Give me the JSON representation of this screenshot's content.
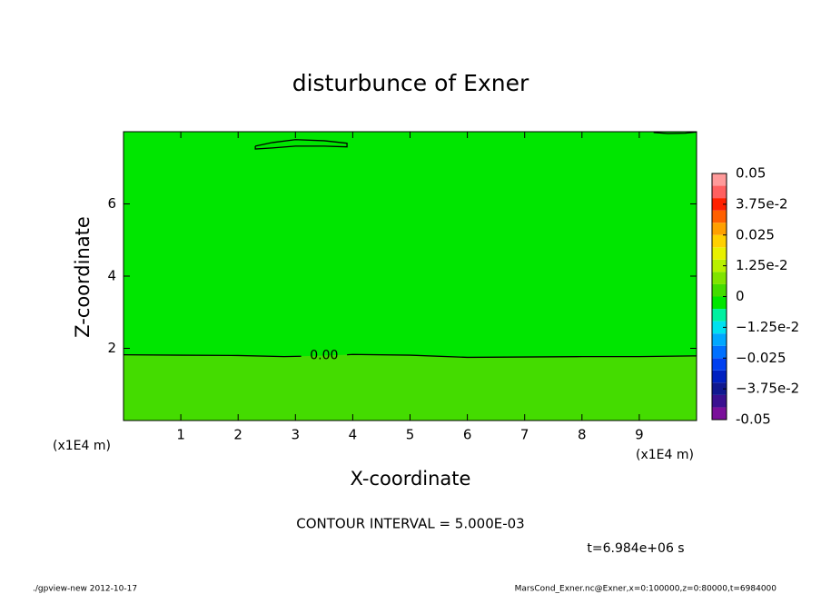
{
  "chart_data": {
    "type": "contour",
    "title": "disturbunce of Exner",
    "xlabel": "X-coordinate",
    "ylabel": "Z-coordinate",
    "xunit": "(x1E4 m)",
    "yunit": "(x1E4 m)",
    "xlim": [
      0,
      10
    ],
    "ylim": [
      0,
      8
    ],
    "xticks": [
      1,
      2,
      3,
      4,
      5,
      6,
      7,
      8,
      9
    ],
    "yticks": [
      2,
      4,
      6
    ],
    "contours": [
      {
        "level": 0,
        "label": "0.00",
        "line_color": "#000000",
        "x": [
          0,
          1,
          2,
          2.8,
          3.1,
          null,
          3.9,
          4,
          5,
          6,
          7,
          8,
          9,
          10
        ],
        "y": [
          1.82,
          1.81,
          1.8,
          1.77,
          1.78,
          null,
          1.82,
          1.83,
          1.81,
          1.75,
          1.76,
          1.77,
          1.77,
          1.79
        ]
      },
      {
        "level": 0,
        "line_color": "#000000",
        "x": [
          2.3,
          2.6,
          3.0,
          3.5,
          3.9,
          3.9,
          3.5,
          3.0,
          2.6,
          2.3,
          2.3
        ],
        "y": [
          7.6,
          7.7,
          7.78,
          7.75,
          7.68,
          7.58,
          7.6,
          7.6,
          7.55,
          7.52,
          7.6
        ]
      },
      {
        "level": 0,
        "line_color": "#000000",
        "x": [
          9.25,
          9.5,
          9.8,
          10
        ],
        "y": [
          7.98,
          7.95,
          7.96,
          7.99
        ]
      }
    ],
    "colorbar": {
      "levels": [
        -0.05,
        -0.045,
        -0.04,
        -0.035,
        -0.03,
        -0.025,
        -0.02,
        -0.015,
        -0.01,
        -0.005,
        0,
        0.005,
        0.01,
        0.015,
        0.02,
        0.025,
        0.03,
        0.035,
        0.04,
        0.045,
        0.05
      ],
      "colors": [
        "#7a0f9a",
        "#3a1090",
        "#101890",
        "#0020c0",
        "#0040f0",
        "#0070ff",
        "#00a8ff",
        "#00e0f0",
        "#00f0a0",
        "#00e600",
        "#44dc00",
        "#80e400",
        "#b8f000",
        "#e8f000",
        "#ffd000",
        "#ffa000",
        "#ff6000",
        "#ff2000",
        "#ff6060",
        "#ff9a9a"
      ],
      "ticks": [
        -0.05,
        {
          "value": -0.0375,
          "label": "−3.75e-2"
        },
        {
          "value": -0.025,
          "label": "−0.025"
        },
        {
          "value": -0.0125,
          "label": "−1.25e-2"
        },
        0,
        {
          "value": 0.0125,
          "label": "1.25e-2"
        },
        0.025,
        {
          "value": 0.0375,
          "label": "3.75e-2"
        },
        0.05
      ]
    },
    "annotations": [
      "CONTOUR INTERVAL = 5.000E-03",
      "t=6.984e+06 s",
      "./gpview-new  2012-10-17",
      "MarsCond_Exner.nc@Exner,x=0:100000,z=0:80000,t=6984000"
    ]
  }
}
